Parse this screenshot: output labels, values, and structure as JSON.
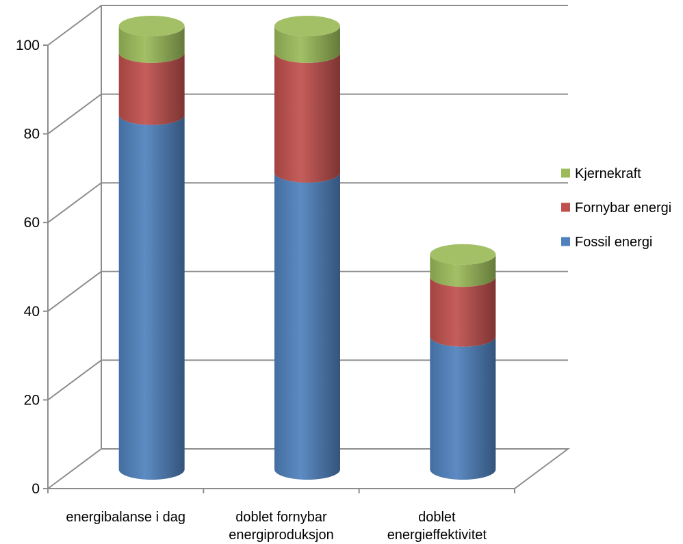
{
  "chart_data": {
    "type": "bar",
    "stacked": true,
    "style": "3d-cylinder",
    "categories": [
      [
        "energibalanse i dag"
      ],
      [
        "doblet fornybar",
        "energiproduksjon"
      ],
      [
        "doblet",
        "energieffektivitet"
      ]
    ],
    "series": [
      {
        "name": "Fossil energi",
        "values": [
          80,
          67,
          30
        ],
        "color": "#4F81BD"
      },
      {
        "name": "Fornybar energi",
        "values": [
          14,
          27,
          13.5
        ],
        "color": "#C0504D"
      },
      {
        "name": "Kjernekraft",
        "values": [
          6,
          6,
          5
        ],
        "color": "#9BBB59"
      }
    ],
    "legend_order": [
      "Kjernekraft",
      "Fornybar energi",
      "Fossil energi"
    ],
    "yticks": [
      "0",
      "20",
      "40",
      "60",
      "80",
      "100"
    ],
    "ylim": [
      0,
      100
    ],
    "grid": true,
    "legend_position": "right"
  }
}
